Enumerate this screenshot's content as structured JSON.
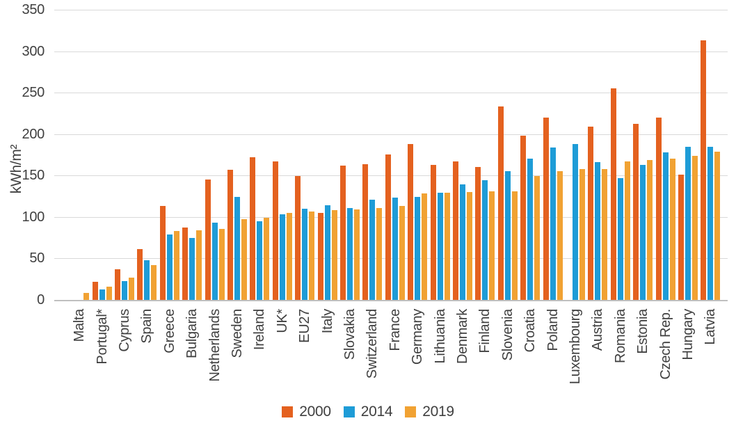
{
  "page": {
    "background": "#FFFFFF"
  },
  "colors": {
    "text": "#404040",
    "gridline": "#D9D9D9",
    "axis_line": "#BFBFBF",
    "series_2000": "#E4611F",
    "series_2014": "#1E9CD7",
    "series_2019": "#F1A233"
  },
  "chart_data": {
    "type": "bar",
    "title": "",
    "xlabel": "",
    "ylabel": "kWh/m²",
    "ylim": [
      0,
      350
    ],
    "yticks": [
      0,
      50,
      100,
      150,
      200,
      250,
      300,
      350
    ],
    "grid": true,
    "legend_position": "bottom",
    "categories": [
      "Malta",
      "Portugal*",
      "Cyprus",
      "Spain",
      "Greece",
      "Bulgaria",
      "Netherlands",
      "Sweden",
      "Ireland",
      "UK*",
      "EU27",
      "Italy",
      "Slovakia",
      "Switzerland",
      "France",
      "Germany",
      "Lithuania",
      "Denmark",
      "Finland",
      "Slovenia",
      "Croatia",
      "Poland",
      "Luxembourg",
      "Austria",
      "Romania",
      "Estonia",
      "Czech Rep.",
      "Hungary",
      "Latvia"
    ],
    "series": [
      {
        "name": "2000",
        "color": "#E4611F",
        "values": [
          null,
          22,
          37,
          61,
          113,
          87,
          145,
          157,
          172,
          167,
          149,
          105,
          162,
          164,
          175,
          188,
          163,
          167,
          160,
          233,
          198,
          220,
          null,
          209,
          255,
          212,
          220,
          151,
          313
        ]
      },
      {
        "name": "2014",
        "color": "#1E9CD7",
        "values": [
          null,
          13,
          23,
          48,
          79,
          75,
          93,
          124,
          95,
          103,
          110,
          114,
          111,
          121,
          123,
          124,
          129,
          139,
          144,
          155,
          170,
          184,
          188,
          166,
          147,
          163,
          178,
          185,
          185
        ]
      },
      {
        "name": "2019",
        "color": "#F1A233",
        "values": [
          8,
          16,
          27,
          42,
          83,
          84,
          86,
          97,
          99,
          105,
          107,
          108,
          109,
          111,
          113,
          128,
          129,
          130,
          131,
          131,
          149,
          155,
          158,
          158,
          167,
          169,
          170,
          174,
          179
        ]
      }
    ]
  }
}
